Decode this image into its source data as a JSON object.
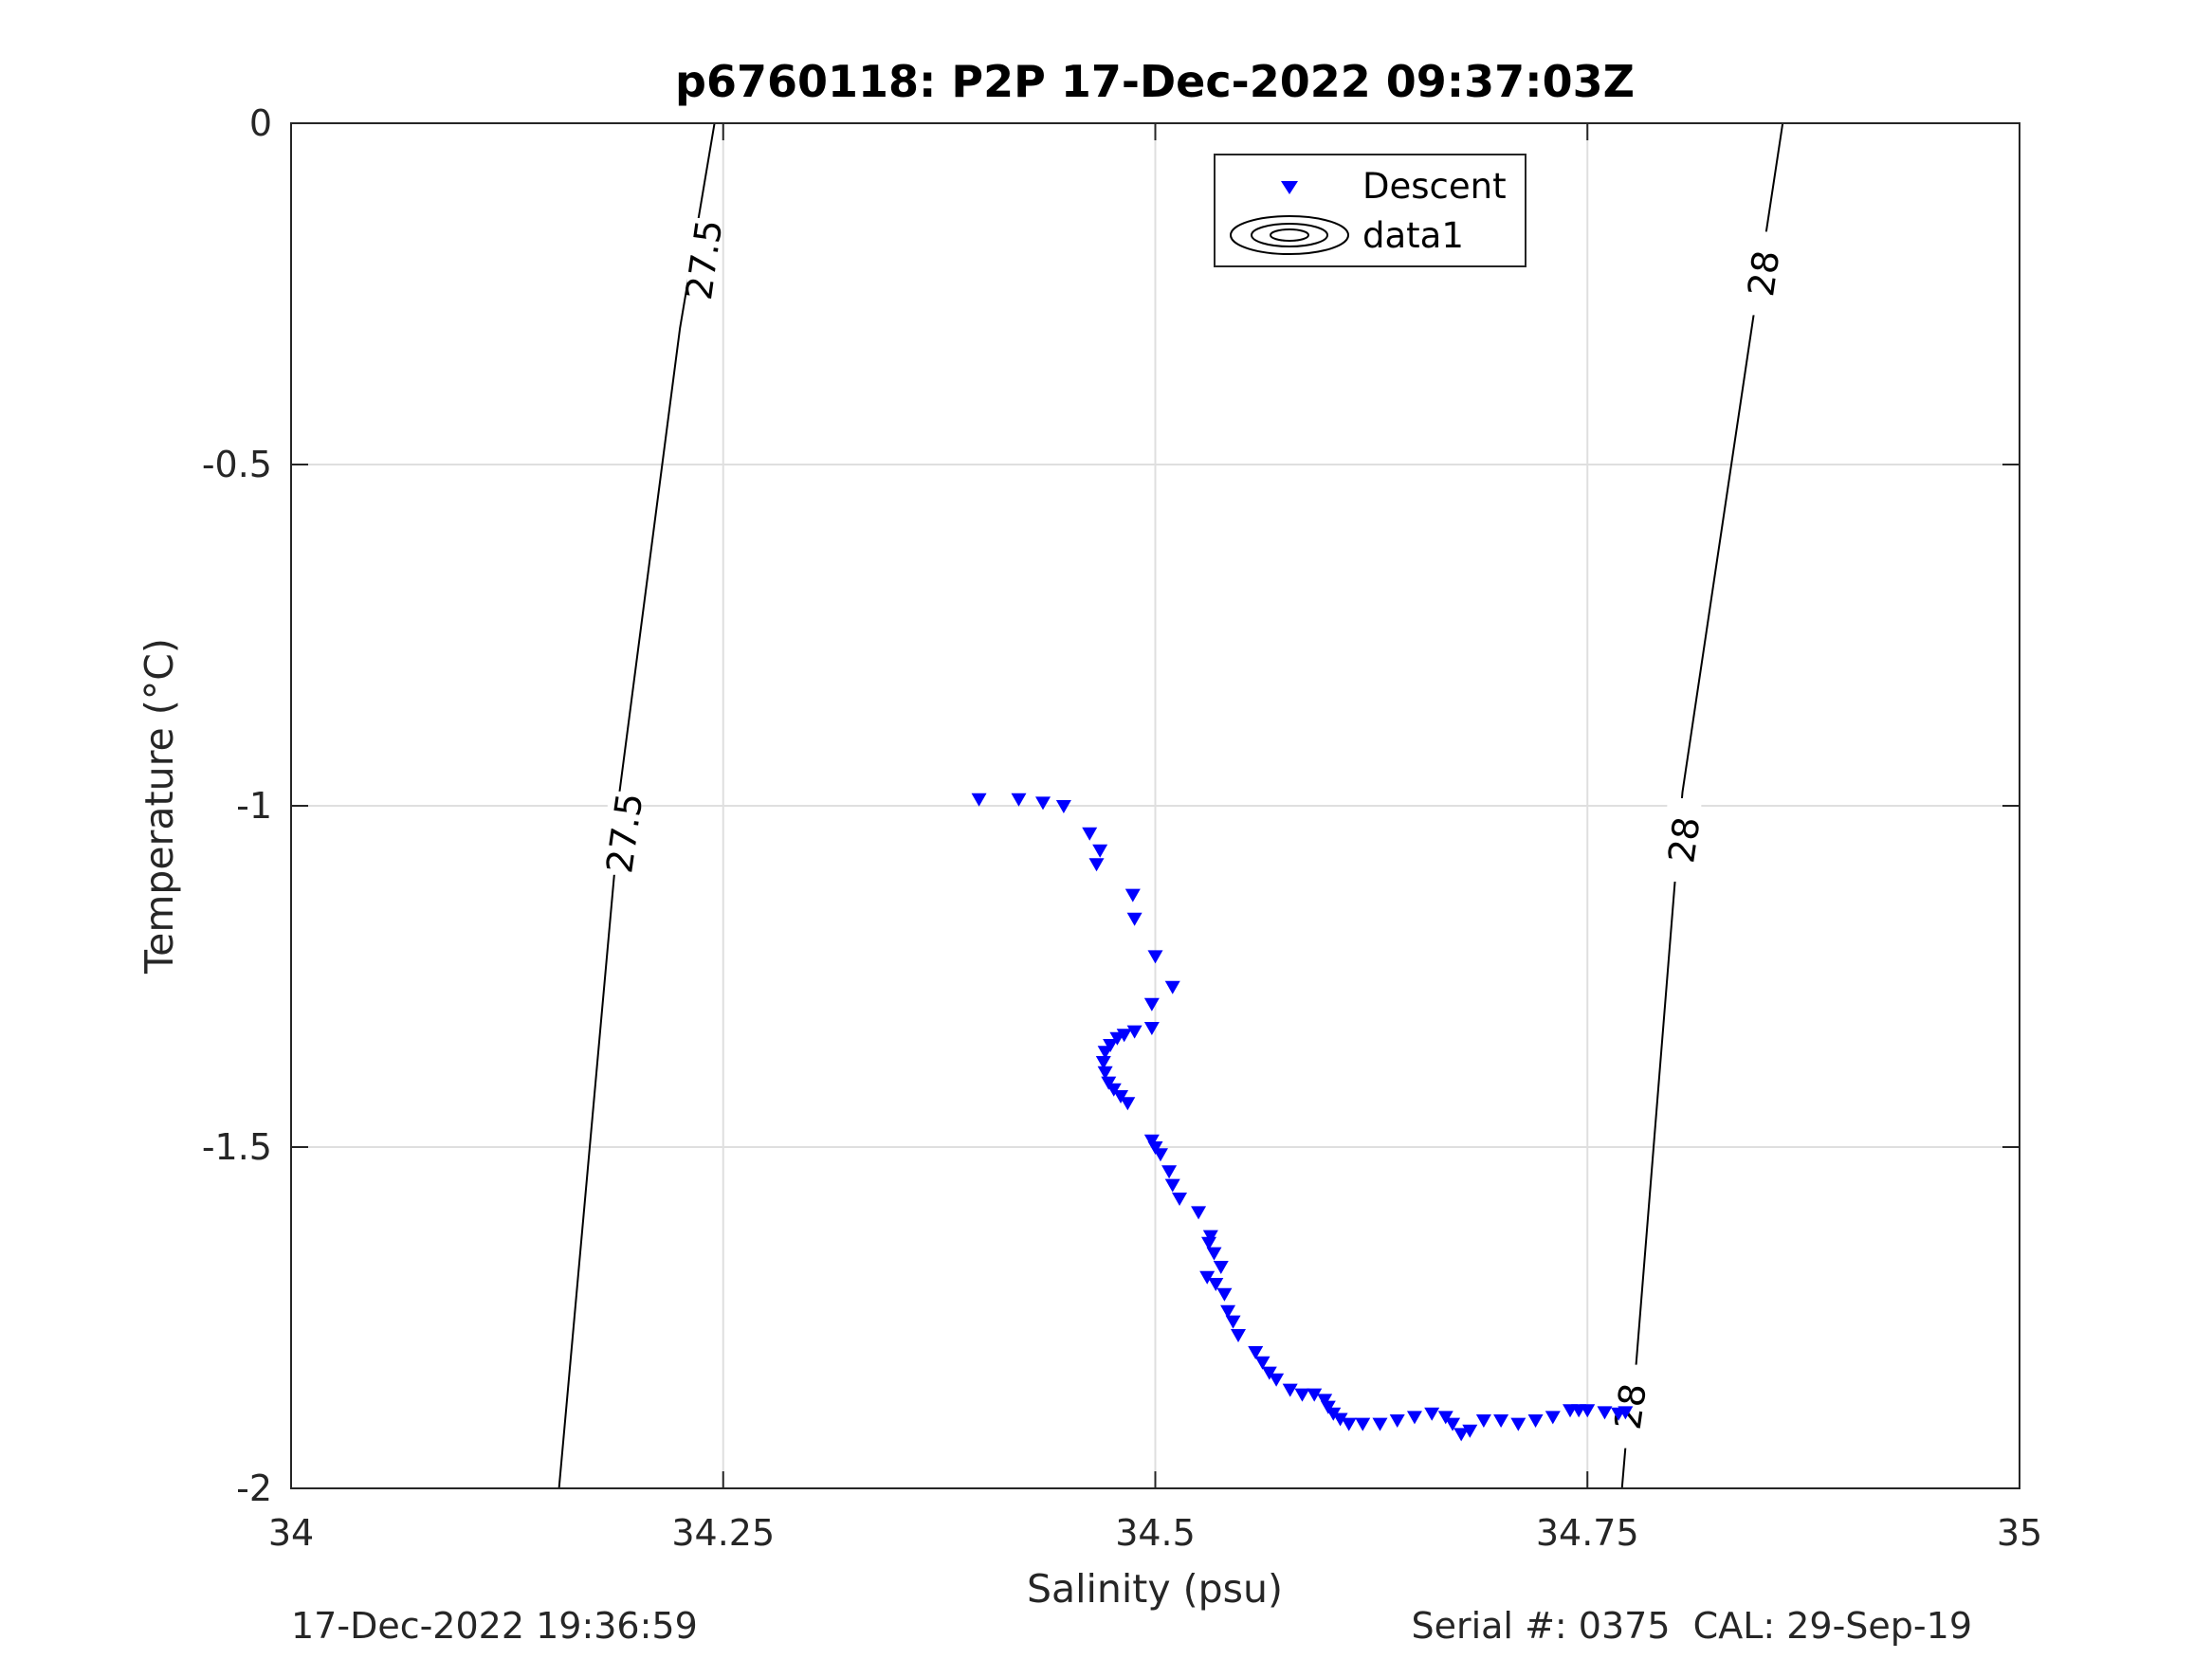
{
  "chart_data": {
    "type": "scatter",
    "title": "p6760118: P2P 17-Dec-2022 09:37:03Z",
    "xlabel": "Salinity (psu)",
    "ylabel": "Temperature (°C)",
    "xlim": [
      34,
      35
    ],
    "ylim": [
      -2,
      0
    ],
    "xticks": [
      34,
      34.25,
      34.5,
      34.75,
      35
    ],
    "xtick_labels": [
      "34",
      "34.25",
      "34.5",
      "34.75",
      "35"
    ],
    "yticks": [
      0,
      -0.5,
      -1,
      -1.5,
      -2
    ],
    "ytick_labels": [
      "0",
      "-0.5",
      "-1",
      "-1.5",
      "-2"
    ],
    "grid": true,
    "legend_position": "top-center",
    "legend": [
      {
        "label": "Descent",
        "marker": "triangle-down",
        "color": "#0000ff"
      },
      {
        "label": "data1",
        "marker": "contour-ellipses",
        "color": "#000000"
      }
    ],
    "contours": [
      {
        "level": "27.5",
        "points": [
          [
            34.155,
            -2
          ],
          [
            34.187,
            -1.1
          ],
          [
            34.19,
            -0.98
          ],
          [
            34.225,
            -0.3
          ],
          [
            34.245,
            0
          ]
        ],
        "label_positions": [
          [
            34.239,
            -0.2
          ],
          [
            34.193,
            -1.04
          ]
        ]
      },
      {
        "level": "28",
        "points": [
          [
            34.77,
            -2
          ],
          [
            34.773,
            -1.91
          ],
          [
            34.777,
            -1.855
          ],
          [
            34.801,
            -1.1
          ],
          [
            34.805,
            -0.98
          ],
          [
            34.848,
            -0.25
          ],
          [
            34.863,
            0
          ]
        ],
        "label_positions": [
          [
            34.852,
            -0.22
          ],
          [
            34.806,
            -1.05
          ],
          [
            34.775,
            -1.88
          ]
        ]
      }
    ],
    "series": [
      {
        "name": "Descent",
        "color": "#0000ff",
        "marker": "triangle-down",
        "points": [
          [
            34.398,
            -0.99
          ],
          [
            34.421,
            -0.99
          ],
          [
            34.435,
            -0.995
          ],
          [
            34.447,
            -1.0
          ],
          [
            34.462,
            -1.04
          ],
          [
            34.468,
            -1.065
          ],
          [
            34.466,
            -1.085
          ],
          [
            34.487,
            -1.13
          ],
          [
            34.488,
            -1.165
          ],
          [
            34.5,
            -1.22
          ],
          [
            34.51,
            -1.265
          ],
          [
            34.498,
            -1.29
          ],
          [
            34.498,
            -1.325
          ],
          [
            34.488,
            -1.33
          ],
          [
            34.482,
            -1.335
          ],
          [
            34.478,
            -1.34
          ],
          [
            34.474,
            -1.35
          ],
          [
            34.471,
            -1.36
          ],
          [
            34.47,
            -1.375
          ],
          [
            34.471,
            -1.39
          ],
          [
            34.473,
            -1.405
          ],
          [
            34.476,
            -1.415
          ],
          [
            34.48,
            -1.425
          ],
          [
            34.484,
            -1.435
          ],
          [
            34.498,
            -1.49
          ],
          [
            34.5,
            -1.5
          ],
          [
            34.503,
            -1.51
          ],
          [
            34.508,
            -1.535
          ],
          [
            34.51,
            -1.555
          ],
          [
            34.514,
            -1.575
          ],
          [
            34.525,
            -1.595
          ],
          [
            34.532,
            -1.63
          ],
          [
            34.531,
            -1.64
          ],
          [
            34.534,
            -1.655
          ],
          [
            34.538,
            -1.675
          ],
          [
            34.53,
            -1.69
          ],
          [
            34.535,
            -1.7
          ],
          [
            34.54,
            -1.715
          ],
          [
            34.542,
            -1.74
          ],
          [
            34.545,
            -1.755
          ],
          [
            34.548,
            -1.775
          ],
          [
            34.558,
            -1.8
          ],
          [
            34.562,
            -1.815
          ],
          [
            34.566,
            -1.83
          ],
          [
            34.57,
            -1.84
          ],
          [
            34.578,
            -1.855
          ],
          [
            34.585,
            -1.862
          ],
          [
            34.592,
            -1.862
          ],
          [
            34.598,
            -1.87
          ],
          [
            34.6,
            -1.88
          ],
          [
            34.603,
            -1.89
          ],
          [
            34.607,
            -1.898
          ],
          [
            34.612,
            -1.905
          ],
          [
            34.62,
            -1.905
          ],
          [
            34.63,
            -1.905
          ],
          [
            34.64,
            -1.9
          ],
          [
            34.65,
            -1.895
          ],
          [
            34.66,
            -1.89
          ],
          [
            34.668,
            -1.895
          ],
          [
            34.672,
            -1.905
          ],
          [
            34.677,
            -1.92
          ],
          [
            34.682,
            -1.915
          ],
          [
            34.69,
            -1.9
          ],
          [
            34.7,
            -1.9
          ],
          [
            34.71,
            -1.905
          ],
          [
            34.72,
            -1.9
          ],
          [
            34.73,
            -1.895
          ],
          [
            34.74,
            -1.885
          ],
          [
            34.745,
            -1.885
          ],
          [
            34.75,
            -1.885
          ],
          [
            34.76,
            -1.888
          ],
          [
            34.768,
            -1.89
          ],
          [
            34.772,
            -1.888
          ]
        ]
      }
    ]
  },
  "footer": {
    "timestamp": "17-Dec-2022 19:36:59",
    "serial": "Serial #: 0375  CAL: 29-Sep-19"
  }
}
